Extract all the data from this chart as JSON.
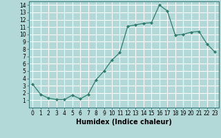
{
  "x": [
    0,
    1,
    2,
    3,
    4,
    5,
    6,
    7,
    8,
    9,
    10,
    11,
    12,
    13,
    14,
    15,
    16,
    17,
    18,
    19,
    20,
    21,
    22,
    23
  ],
  "y": [
    3.2,
    1.8,
    1.3,
    1.1,
    1.1,
    1.7,
    1.2,
    1.8,
    3.8,
    5.0,
    6.5,
    7.5,
    11.1,
    11.3,
    11.5,
    11.6,
    14.0,
    13.2,
    9.9,
    10.0,
    10.3,
    10.4,
    8.7,
    7.6
  ],
  "line_color": "#2e7d6e",
  "marker": "D",
  "marker_size": 2.0,
  "bg_color": "#b2d8d8",
  "grid_color": "#ffffff",
  "xlabel": "Humidex (Indice chaleur)",
  "xlim": [
    -0.5,
    23.5
  ],
  "ylim": [
    0,
    14.5
  ],
  "xticks": [
    0,
    1,
    2,
    3,
    4,
    5,
    6,
    7,
    8,
    9,
    10,
    11,
    12,
    13,
    14,
    15,
    16,
    17,
    18,
    19,
    20,
    21,
    22,
    23
  ],
  "yticks": [
    1,
    2,
    3,
    4,
    5,
    6,
    7,
    8,
    9,
    10,
    11,
    12,
    13,
    14
  ],
  "tick_fontsize": 5.5,
  "label_fontsize": 7.0
}
